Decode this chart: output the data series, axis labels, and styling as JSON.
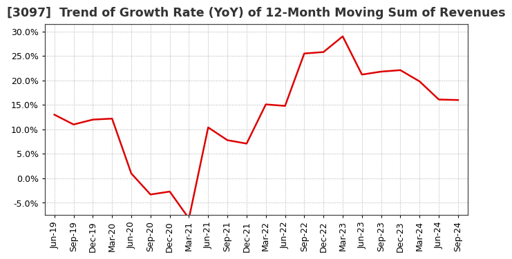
{
  "title": "[3097]  Trend of Growth Rate (YoY) of 12-Month Moving Sum of Revenues",
  "x_labels": [
    "Jun-19",
    "Sep-19",
    "Dec-19",
    "Mar-20",
    "Jun-20",
    "Sep-20",
    "Dec-20",
    "Mar-21",
    "Jun-21",
    "Sep-21",
    "Dec-21",
    "Mar-22",
    "Jun-22",
    "Sep-22",
    "Dec-22",
    "Mar-23",
    "Jun-23",
    "Sep-23",
    "Dec-23",
    "Mar-24",
    "Jun-24",
    "Sep-24"
  ],
  "y_values": [
    0.13,
    0.11,
    0.12,
    0.122,
    0.01,
    -0.033,
    -0.027,
    -0.082,
    0.104,
    0.078,
    0.071,
    0.151,
    0.148,
    0.255,
    0.258,
    0.29,
    0.212,
    0.218,
    0.221,
    0.198,
    0.161,
    0.16
  ],
  "line_color": "#dd0000",
  "line_width": 1.8,
  "ylim": [
    -0.075,
    0.315
  ],
  "yticks": [
    -0.05,
    0.0,
    0.05,
    0.1,
    0.15,
    0.2,
    0.25,
    0.3
  ],
  "bg_color": "#ffffff",
  "plot_bg_color": "#ffffff",
  "grid_color": "#aaaaaa",
  "title_fontsize": 12.5,
  "tick_fontsize": 9.0
}
